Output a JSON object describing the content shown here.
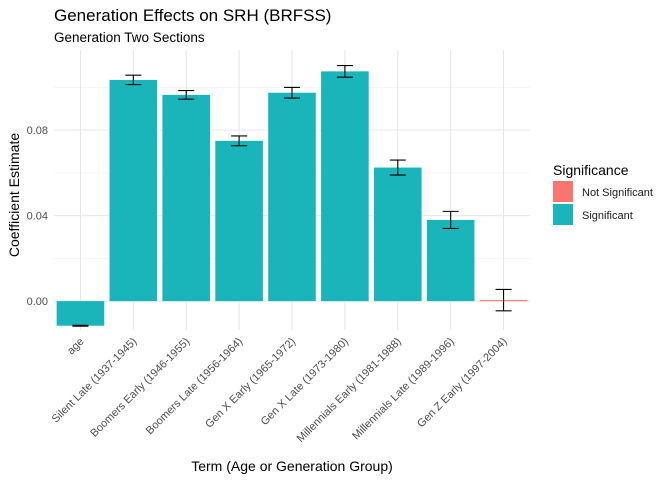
{
  "chart_data": {
    "type": "bar",
    "title": "Generation Effects on SRH (BRFSS)",
    "subtitle": "Generation Two Sections",
    "xlabel": "Term (Age or Generation Group)",
    "ylabel": "Coefficient Estimate",
    "ylim": [
      -0.0135,
      0.1175
    ],
    "yticks": [
      0.0,
      0.04,
      0.08
    ],
    "ytick_labels": [
      "0.00",
      "0.04",
      "0.08"
    ],
    "grid": true,
    "legend_position": "right",
    "legend_title": "Significance",
    "categories": [
      "age",
      "Silent Late (1937-1945)",
      "Boomers Early (1946-1955)",
      "Boomers Late (1956-1964)",
      "Gen X Early (1965-1972)",
      "Gen X Late (1973-1980)",
      "Millennials Early (1981-1988)",
      "Millennials Late (1989-1996)",
      "Gen Z Early (1997-2004)"
    ],
    "values": [
      -0.0115,
      0.1035,
      0.0965,
      0.075,
      0.0975,
      0.1075,
      0.0625,
      0.038,
      0.0005
    ],
    "error_low": [
      -0.0117,
      0.1013,
      0.0945,
      0.0727,
      0.095,
      0.1048,
      0.059,
      0.034,
      -0.0045
    ],
    "error_high": [
      -0.0113,
      0.1057,
      0.0985,
      0.0773,
      0.1,
      0.1102,
      0.066,
      0.042,
      0.0055
    ],
    "significance": [
      "Significant",
      "Significant",
      "Significant",
      "Significant",
      "Significant",
      "Significant",
      "Significant",
      "Significant",
      "Not Significant"
    ],
    "series": [
      {
        "name": "Not Significant",
        "color": "#F8766D"
      },
      {
        "name": "Significant",
        "color": "#19B5BA"
      }
    ]
  }
}
